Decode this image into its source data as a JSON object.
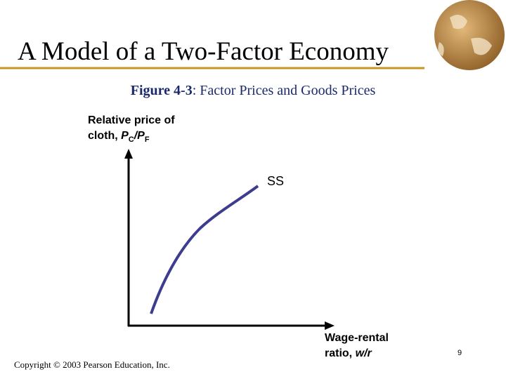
{
  "header": {
    "title": "A Model of a Two-Factor Economy"
  },
  "figure": {
    "label": "Figure 4-3",
    "caption": ": Factor Prices and Goods Prices"
  },
  "diagram": {
    "y_axis_label": {
      "line1": "Relative price of",
      "line2": [
        "cloth, ",
        "P",
        "C",
        "/P",
        "F"
      ]
    },
    "curve_label": "SS",
    "x_axis_label": {
      "line1": "Wage-rental",
      "line2": [
        "ratio, ",
        "w/r"
      ]
    }
  },
  "footer": {
    "copyright": "Copyright © 2003 Pearson Education, Inc.",
    "page_number": "9"
  }
}
